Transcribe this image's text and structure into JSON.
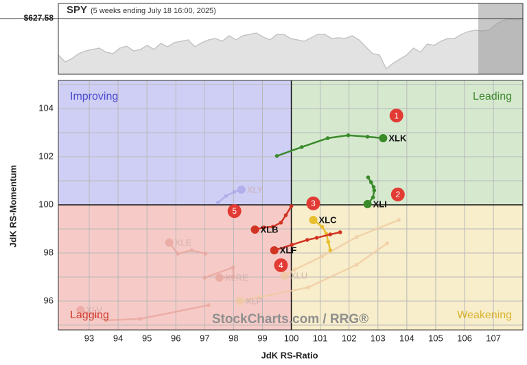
{
  "chart_data": {
    "type": "rrg",
    "price_panel": {
      "symbol": "SPY",
      "subtitle": "(5 weeks ending July 18 16:00, 2025)",
      "last_price": 627.58,
      "last_price_label": "$627.58",
      "ylim": [
        482,
        667
      ],
      "values": [
        532.2,
        514.2,
        523.2,
        535.8,
        543.0,
        546.6,
        550.2,
        539.4,
        535.8,
        550.2,
        555.6,
        543.0,
        546.6,
        557.4,
        546.6,
        562.8,
        553.8,
        564.6,
        568.2,
        571.8,
        553.8,
        564.6,
        571.8,
        575.4,
        568.2,
        582.6,
        571.8,
        582.6,
        586.2,
        589.8,
        579.0,
        571.8,
        586.2,
        586.2,
        575.4,
        571.8,
        568.2,
        577.2,
        586.2,
        586.2,
        575.4,
        577.2,
        575.4,
        582.6,
        571.8,
        553.8,
        535.8,
        532.2,
        496.2,
        510.6,
        521.4,
        532.2,
        550.2,
        539.4,
        561.0,
        557.4,
        568.2,
        575.4,
        575.4,
        586.2,
        593.4,
        597.0,
        595.2,
        597.0,
        611.4,
        622.2,
        625.8,
        624.0,
        627.58
      ]
    },
    "x_label": "JdK RS-Ratio",
    "y_label": "JdK RS-Momentum",
    "xlim": [
      91.93,
      108.02
    ],
    "ylim": [
      94.8,
      105.17
    ],
    "xticks": [
      93,
      94,
      95,
      96,
      97,
      98,
      99,
      100,
      101,
      102,
      103,
      104,
      105,
      106,
      107
    ],
    "yticks": [
      96,
      98,
      100,
      102,
      104
    ],
    "minor_yticks": [
      95,
      97,
      99,
      101,
      103,
      105
    ],
    "center": {
      "x": 100,
      "y": 100
    },
    "grid": true,
    "quadrants": [
      {
        "name": "Improving",
        "color": "#cfcff5",
        "text_color": "#4a4ad0"
      },
      {
        "name": "Leading",
        "color": "#d6e9cf",
        "text_color": "#3f8a2f"
      },
      {
        "name": "Lagging",
        "color": "#f6cbc7",
        "text_color": "#d03a2e"
      },
      {
        "name": "Weakening",
        "color": "#f8eecb",
        "text_color": "#d8b22c"
      }
    ],
    "watermark": "StockCharts.com / RRG®",
    "series": [
      {
        "name": "XLK",
        "color": "#3a8a2a",
        "faded": false,
        "x": [
          99.5,
          100.36,
          101.26,
          101.97,
          102.64,
          103.18
        ],
        "y": [
          102.03,
          102.4,
          102.77,
          102.89,
          102.83,
          102.77
        ]
      },
      {
        "name": "XLI",
        "color": "#3a8a2a",
        "faded": false,
        "x": [
          102.66,
          102.76,
          102.85,
          102.87,
          102.83,
          102.64
        ],
        "y": [
          101.14,
          100.94,
          100.74,
          100.6,
          100.31,
          100.03
        ]
      },
      {
        "name": "XLC",
        "color": "#e6be2e",
        "faded": false,
        "x": [
          101.35,
          101.28,
          101.21,
          101.07,
          100.76
        ],
        "y": [
          98.11,
          98.46,
          98.8,
          99.09,
          99.37
        ]
      },
      {
        "name": "XLB",
        "color": "#d03322",
        "faded": false,
        "x": [
          100.0,
          99.81,
          99.64,
          99.36,
          99.05,
          98.74
        ],
        "y": [
          99.94,
          99.57,
          99.26,
          99.09,
          99.06,
          98.97
        ]
      },
      {
        "name": "XLF",
        "color": "#d03322",
        "faded": false,
        "x": [
          101.69,
          101.35,
          100.88,
          100.55,
          100.02,
          99.41
        ],
        "y": [
          98.86,
          98.77,
          98.63,
          98.54,
          98.34,
          98.11
        ]
      },
      {
        "name": "XLY",
        "color": "#a9a3e8",
        "faded": true,
        "x": [
          97.46,
          97.74,
          98.03,
          98.27
        ],
        "y": [
          100.09,
          100.37,
          100.54,
          100.63
        ]
      },
      {
        "name": "XLE",
        "color": "#e8a39c",
        "faded": true,
        "x": [
          97.03,
          96.55,
          96.07,
          95.77
        ],
        "y": [
          97.97,
          98.11,
          97.97,
          98.43
        ]
      },
      {
        "name": "XLRE",
        "color": "#e8a39c",
        "faded": true,
        "x": [
          97.0,
          97.98,
          98.0,
          97.51
        ],
        "y": [
          96.97,
          97.4,
          97.0,
          96.97
        ]
      },
      {
        "name": "XLU",
        "color": "#f0c9a0",
        "faded": true,
        "x": [
          103.72,
          102.26,
          101.07,
          100.12,
          99.77
        ],
        "y": [
          99.37,
          98.66,
          97.86,
          97.31,
          97.06
        ]
      },
      {
        "name": "XLP",
        "color": "#f0c9a0",
        "faded": true,
        "x": [
          103.32,
          102.26,
          100.59,
          98.93,
          98.22
        ],
        "y": [
          98.4,
          97.51,
          96.57,
          96.17,
          96.0
        ]
      },
      {
        "name": "XLV",
        "color": "#e8a39c",
        "faded": true,
        "x": [
          97.13,
          94.77,
          93.58,
          92.7
        ],
        "y": [
          95.83,
          95.26,
          95.2,
          95.63
        ]
      }
    ],
    "annotations": [
      {
        "text": "1",
        "x": 103.64,
        "y": 103.71
      },
      {
        "text": "2",
        "x": 103.69,
        "y": 100.43
      },
      {
        "text": "3",
        "x": 100.76,
        "y": 100.06
      },
      {
        "text": "4",
        "x": 99.64,
        "y": 97.49
      },
      {
        "text": "5",
        "x": 98.03,
        "y": 99.74
      }
    ]
  }
}
